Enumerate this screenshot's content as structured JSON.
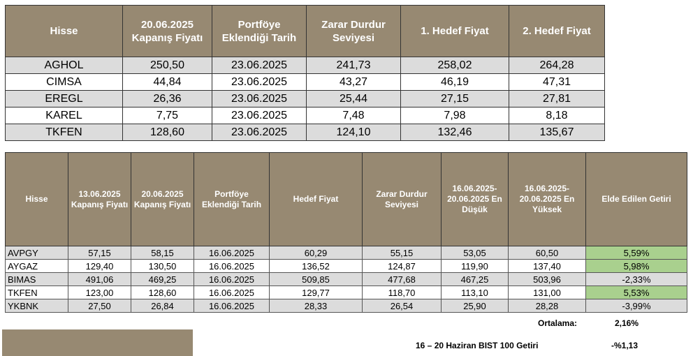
{
  "table1": {
    "headers": [
      "Hisse",
      "20.06.2025 Kapanış Fiyatı",
      "Portföye Eklendiği Tarih",
      "Zarar Durdur Seviyesi",
      "1. Hedef Fiyat",
      "2. Hedef Fiyat"
    ],
    "rows": [
      [
        "AGHOL",
        "250,50",
        "23.06.2025",
        "241,73",
        "258,02",
        "264,28"
      ],
      [
        "CIMSA",
        "44,84",
        "23.06.2025",
        "43,27",
        "46,19",
        "47,31"
      ],
      [
        "EREGL",
        "26,36",
        "23.06.2025",
        "25,44",
        "27,15",
        "27,81"
      ],
      [
        "KAREL",
        "7,75",
        "23.06.2025",
        "7,48",
        "7,98",
        "8,18"
      ],
      [
        "TKFEN",
        "128,60",
        "23.06.2025",
        "124,10",
        "132,46",
        "135,67"
      ]
    ]
  },
  "table2": {
    "headers": [
      "Hisse",
      "13.06.2025 Kapanış Fiyatı",
      "20.06.2025 Kapanış Fiyatı",
      "Portföye Eklendiği Tarih",
      "Hedef Fiyat",
      "Zarar Durdur Seviyesi",
      "16.06.2025-20.06.2025 En Düşük",
      "16.06.2025-20.06.2025 En Yüksek",
      "Elde Edilen Getiri"
    ],
    "rows": [
      [
        "AVPGY",
        "57,15",
        "58,15",
        "16.06.2025",
        "60,29",
        "55,15",
        "53,05",
        "60,50",
        "5,59%"
      ],
      [
        "AYGAZ",
        "129,40",
        "130,50",
        "16.06.2025",
        "136,52",
        "124,87",
        "119,90",
        "137,40",
        "5,98%"
      ],
      [
        "BIMAS",
        "491,06",
        "469,25",
        "16.06.2025",
        "509,85",
        "477,68",
        "467,25",
        "503,96",
        "-2,33%"
      ],
      [
        "TKFEN",
        "123,00",
        "128,60",
        "16.06.2025",
        "129,77",
        "118,70",
        "113,10",
        "131,00",
        "5,53%"
      ],
      [
        "YKBNK",
        "27,50",
        "26,84",
        "16.06.2025",
        "28,33",
        "26,54",
        "25,90",
        "28,28",
        "-3,99%"
      ]
    ],
    "positive_highlight_color": "#a9d08e",
    "average_label": "Ortalama:",
    "average_value": "2,16%"
  },
  "bist": {
    "label": "16 – 20 Haziran BIST 100 Getiri",
    "value": "-%1,13"
  },
  "colors": {
    "header_bg": "#978972",
    "row_alt_bg": "#dcdcdc"
  }
}
